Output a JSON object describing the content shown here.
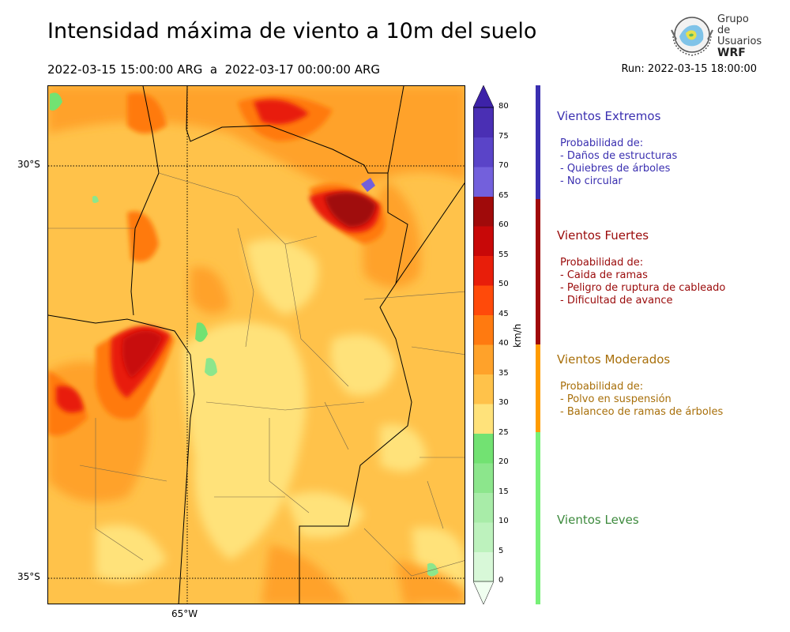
{
  "title": "Intensidad máxima de viento a 10m del suelo",
  "period": "2022-03-15 15:00:00 ARG  a  2022-03-17 00:00:00 ARG",
  "run": "Run: 2022-03-15 18:00:00",
  "logo": {
    "line1": "Grupo de",
    "line2": "Usuarios",
    "line3": "WRF"
  },
  "map": {
    "lat_labels": [
      "30°S",
      "35°S"
    ],
    "lon_labels": [
      "65°W"
    ]
  },
  "colorbar": {
    "unit": "km/h",
    "ticks": [
      "0",
      "5",
      "10",
      "15",
      "20",
      "25",
      "30",
      "35",
      "40",
      "45",
      "50",
      "55",
      "60",
      "65",
      "70",
      "75",
      "80"
    ],
    "colors": [
      "#f0fff0",
      "#d8f8d8",
      "#bdf2bd",
      "#a8eca8",
      "#8ce68c",
      "#72e272",
      "#ffe27a",
      "#ffc24a",
      "#ffa22a",
      "#ff7a10",
      "#ff4a0a",
      "#e81e0a",
      "#c80808",
      "#a00a0a",
      "#7360dc",
      "#5a44c8",
      "#4a2fb4",
      "#3d22a8"
    ]
  },
  "categories": [
    {
      "name": "Vientos Extremos",
      "color": "#3a2fb0",
      "bar_color": "#3a2fb0",
      "lines": [
        "Probabilidad de:",
        "- Daños de estructuras",
        "- Quiebres de árboles",
        "- No circular"
      ]
    },
    {
      "name": "Vientos Fuertes",
      "color": "#9a0a0a",
      "bar_color": "#a00a0a",
      "lines": [
        "Probabilidad de:",
        "- Caida de ramas",
        "- Peligro de ruptura de cableado",
        "- Dificultad de avance"
      ]
    },
    {
      "name": "Vientos Moderados",
      "color": "#a86f0a",
      "bar_color": "#ff9c00",
      "lines": [
        "Probabilidad de:",
        "- Polvo en suspensión",
        "- Balanceo de ramas de árboles"
      ]
    },
    {
      "name": "Vientos Leves",
      "color": "#3d8a3d",
      "bar_color": "#77f077",
      "lines": []
    }
  ]
}
